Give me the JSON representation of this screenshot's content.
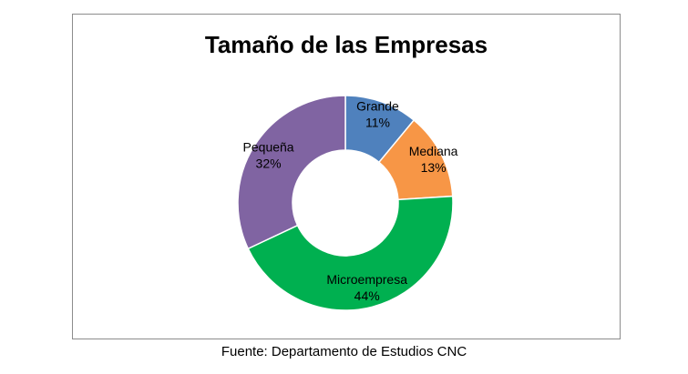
{
  "chart_data": {
    "type": "pie",
    "title": "Tamaño de las Empresas",
    "slices": [
      {
        "label": "Grande",
        "value": 11,
        "display": "11%",
        "color": "#4f81bd"
      },
      {
        "label": "Mediana",
        "value": 13,
        "display": "13%",
        "color": "#f79646"
      },
      {
        "label": "Microempresa",
        "value": 44,
        "display": "44%",
        "color": "#00b050"
      },
      {
        "label": "Pequeña",
        "value": 32,
        "display": "32%",
        "color": "#8064a2"
      }
    ],
    "donut": true,
    "legend": "none"
  },
  "caption": "Fuente: Departamento de Estudios CNC"
}
